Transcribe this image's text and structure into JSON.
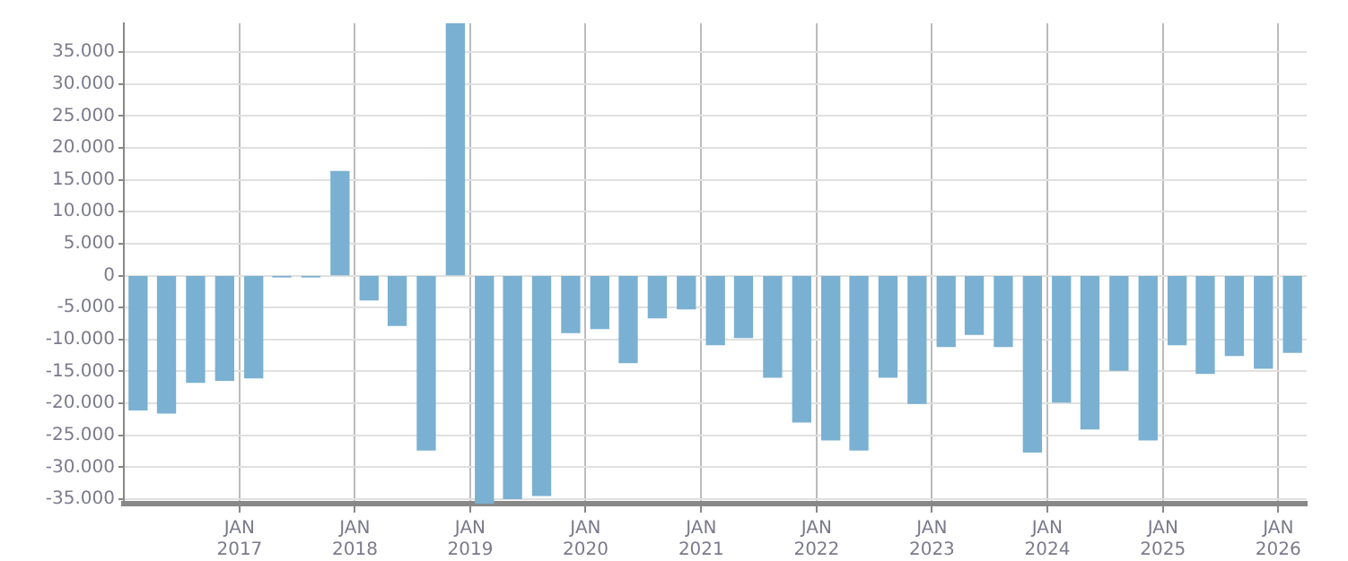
{
  "chart_data": {
    "type": "bar",
    "color": "#7ab0d2",
    "x": [
      "2016-02-15",
      "2016-05-15",
      "2016-08-15",
      "2016-11-15",
      "2017-02-15",
      "2017-05-15",
      "2017-08-15",
      "2017-11-15",
      "2018-02-15",
      "2018-05-15",
      "2018-08-15",
      "2018-11-15",
      "2019-02-15",
      "2019-05-15",
      "2019-08-15",
      "2019-11-15",
      "2020-02-15",
      "2020-05-15",
      "2020-08-15",
      "2020-11-15",
      "2021-02-15",
      "2021-05-15",
      "2021-08-15",
      "2021-11-15",
      "2022-02-15",
      "2022-05-15",
      "2022-08-15",
      "2022-11-15",
      "2023-02-15",
      "2023-05-15",
      "2023-08-15",
      "2023-11-15",
      "2024-02-15",
      "2024-05-15",
      "2024-08-15",
      "2024-11-15",
      "2025-02-15",
      "2025-05-15",
      "2025-08-15",
      "2025-11-15",
      "2026-02-15"
    ],
    "values": [
      -21000,
      -21500,
      -16700,
      -16400,
      -16000,
      -200,
      -200,
      16300,
      -3800,
      -7800,
      -27300,
      39500,
      -35700,
      -34900,
      -34400,
      -8900,
      -8300,
      -13600,
      -6600,
      -5200,
      -10800,
      -9700,
      -15900,
      -22900,
      -25700,
      -27300,
      -15900,
      -20000,
      -11100,
      -9200,
      -11100,
      -27600,
      -19800,
      -24000,
      -14800,
      -25700,
      -10800,
      -15300,
      -12500,
      -14500,
      -12000
    ],
    "xlim": [
      "2016-01-01",
      "2026-04-01"
    ],
    "xticks": [
      {
        "value": "2017-01-01",
        "label": "JAN 2017"
      },
      {
        "value": "2018-01-01",
        "label": "JAN 2018"
      },
      {
        "value": "2019-01-01",
        "label": "JAN 2019"
      },
      {
        "value": "2020-01-01",
        "label": "JAN 2020"
      },
      {
        "value": "2021-01-01",
        "label": "JAN 2021"
      },
      {
        "value": "2022-01-01",
        "label": "JAN 2022"
      },
      {
        "value": "2023-01-01",
        "label": "JAN 2023"
      },
      {
        "value": "2024-01-01",
        "label": "JAN 2024"
      },
      {
        "value": "2025-01-01",
        "label": "JAN 2025"
      },
      {
        "value": "2026-01-01",
        "label": "JAN 2026"
      }
    ],
    "ylim": [
      -35700,
      39500
    ],
    "yticks": [
      {
        "value": 35000,
        "label": "35.000"
      },
      {
        "value": 30000,
        "label": "30.000"
      },
      {
        "value": 25000,
        "label": "25.000"
      },
      {
        "value": 20000,
        "label": "20.000"
      },
      {
        "value": 15000,
        "label": "15.000"
      },
      {
        "value": 10000,
        "label": "10.000"
      },
      {
        "value": 5000,
        "label": "5.000"
      },
      0,
      {
        "value": -5000,
        "label": "-5.000"
      },
      {
        "value": -10000,
        "label": "-10.000"
      },
      {
        "value": -15000,
        "label": "-15.000"
      },
      {
        "value": -20000,
        "label": "-20.000"
      },
      {
        "value": -25000,
        "label": "-25.000"
      },
      {
        "value": -30000,
        "label": "-30.000"
      },
      {
        "value": -35000,
        "label": "-35.000"
      }
    ],
    "grid": true
  }
}
